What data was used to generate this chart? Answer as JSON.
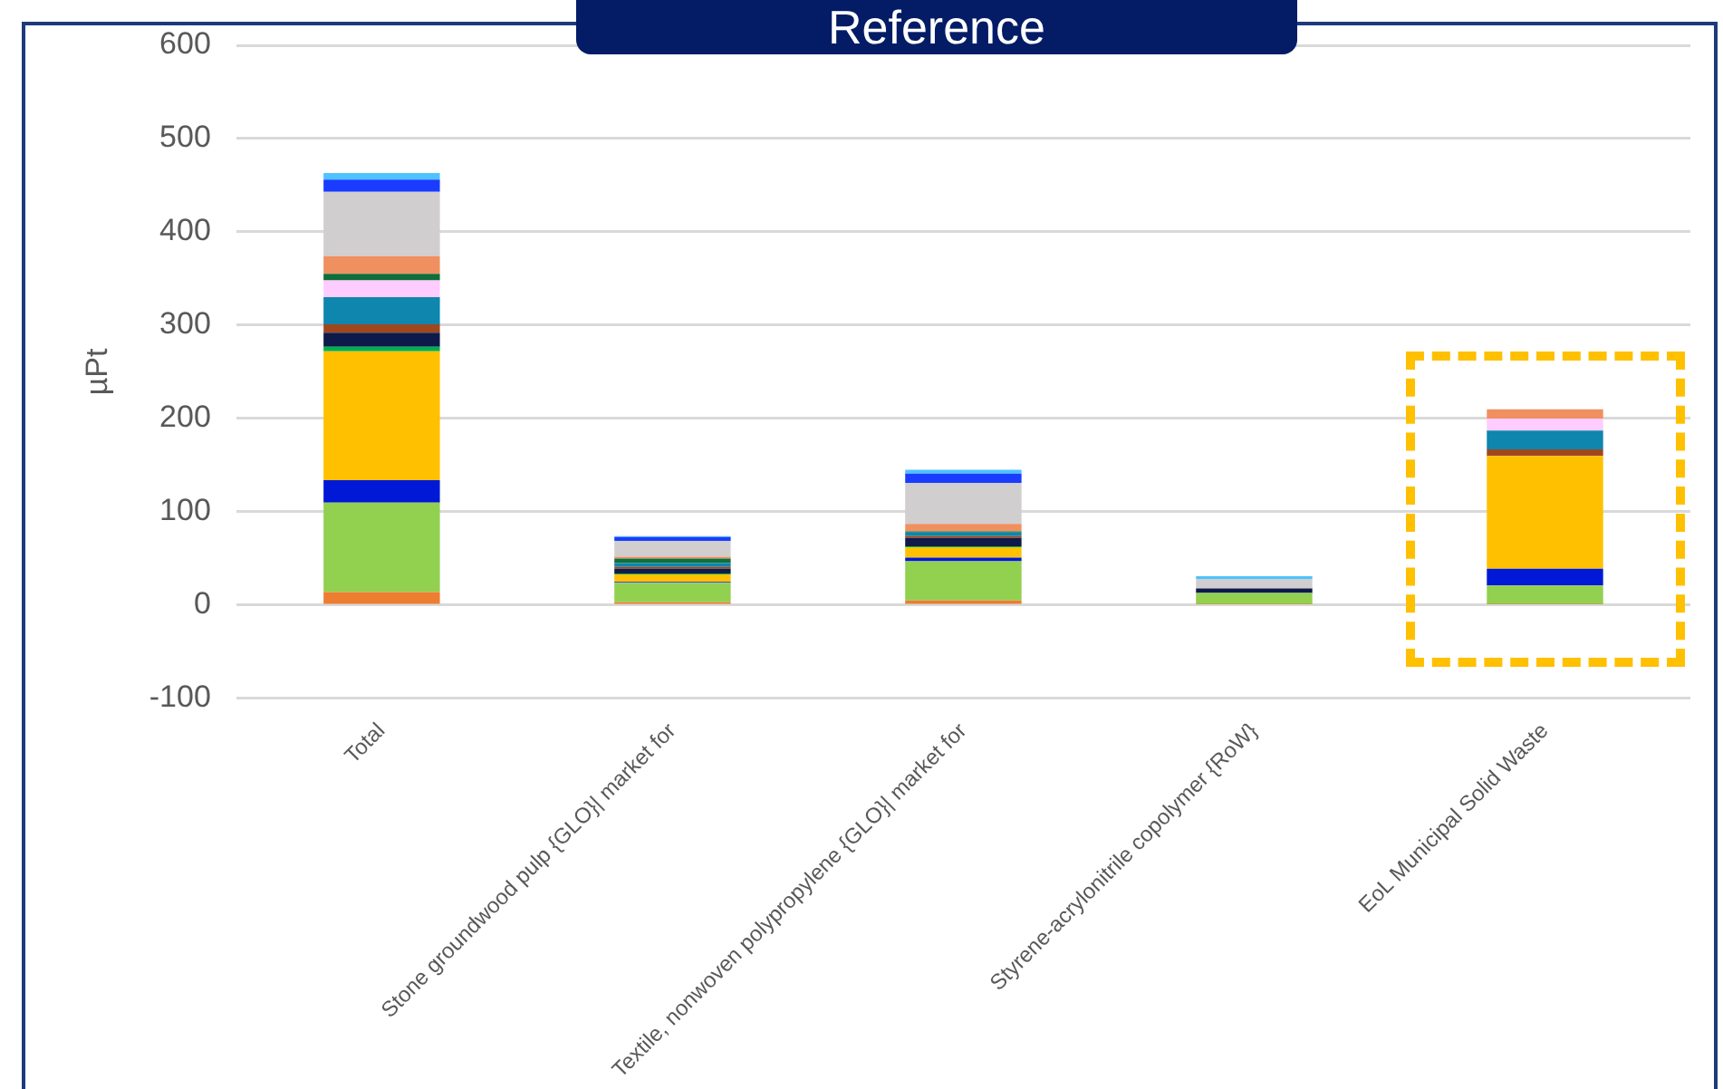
{
  "chart_data": {
    "type": "bar",
    "title": "Reference",
    "ylabel": "µPt",
    "stacked": true,
    "categories": [
      "Total",
      "Stone groundwood pulp {GLO}| market for",
      "Textile, nonwoven polypropylene {GLO}| market for",
      "Styrene-acrylonitrile copolymer {RoW}",
      "EoL Municipal Solid Waste"
    ],
    "series": [
      {
        "color": "#ed7d31",
        "values": [
          14,
          3,
          5,
          1,
          1
        ]
      },
      {
        "color": "#92d050",
        "values": [
          96,
          21,
          42,
          12,
          20
        ]
      },
      {
        "color": "#0019d6",
        "values": [
          24,
          1,
          4,
          0,
          18
        ]
      },
      {
        "color": "#ffc000",
        "values": [
          138,
          8,
          11,
          0,
          121
        ]
      },
      {
        "color": "#00b050",
        "values": [
          5,
          1,
          1,
          0,
          0
        ]
      },
      {
        "color": "#0d1a4a",
        "values": [
          15,
          5,
          9,
          5,
          0
        ]
      },
      {
        "color": "#a0471e",
        "values": [
          9,
          2,
          2,
          0,
          7
        ]
      },
      {
        "color": "#0e86ad",
        "values": [
          29,
          4,
          4,
          0,
          20
        ]
      },
      {
        "color": "#ffccff",
        "values": [
          18,
          null,
          null,
          0,
          13
        ]
      },
      {
        "color": "#0f6e3a",
        "values": [
          7,
          5,
          1,
          0,
          0
        ]
      },
      {
        "color": "#f09060",
        "values": [
          19,
          2,
          8,
          0,
          10
        ]
      },
      {
        "color": "#d0cece",
        "values": [
          69,
          17,
          44,
          10,
          0
        ]
      },
      {
        "color": "#1a3cff",
        "values": [
          13,
          4,
          10,
          0,
          0
        ]
      },
      {
        "color": "#4dc3ff",
        "values": [
          7,
          1,
          4,
          3,
          0
        ]
      }
    ],
    "ylim": [
      -100,
      600
    ],
    "yticks": [
      -100,
      0,
      100,
      200,
      300,
      400,
      500,
      600
    ],
    "grid": "y",
    "legend": false
  }
}
